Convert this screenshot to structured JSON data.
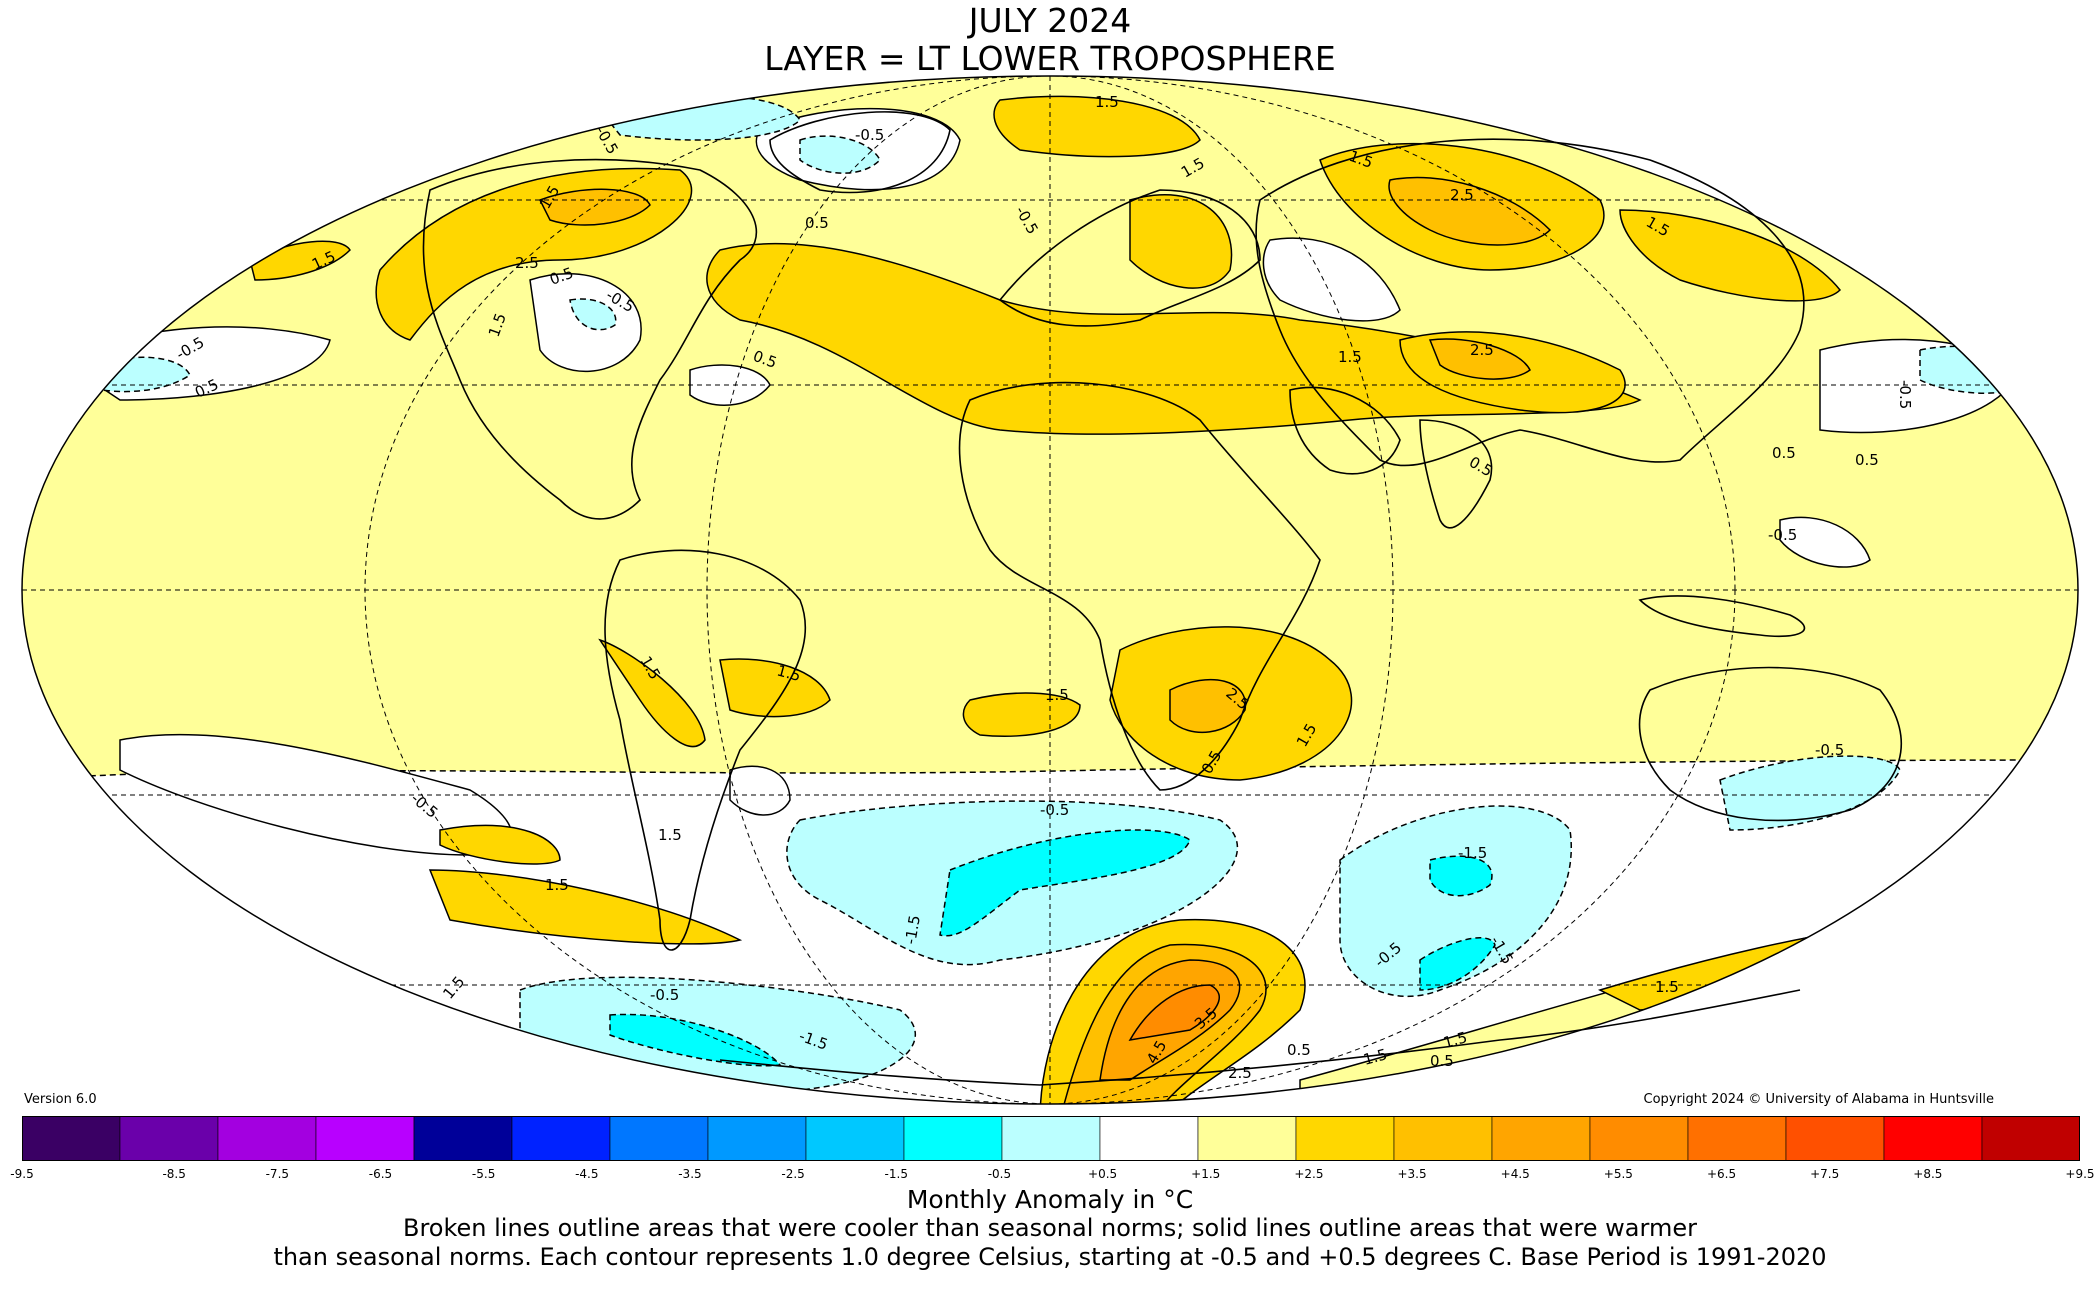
{
  "header": {
    "title_line1": "JULY 2024",
    "title_line2": "LAYER = LT LOWER TROPOSPHERE"
  },
  "footer": {
    "version": "Version 6.0",
    "copyright": "Copyright 2024 © University of Alabama in Huntsville",
    "axis_title": "Monthly Anomaly in °C",
    "note_line1": "Broken lines outline areas that were cooler than seasonal norms; solid lines outline areas that were warmer",
    "note_line2": "than seasonal norms. Each contour represents 1.0 degree Celsius, starting at -0.5 and +0.5 degrees C. Base Period is 1991-2020"
  },
  "colorbar": {
    "ticks": [
      "-9.5",
      "-8.5",
      "-7.5",
      "-6.5",
      "-5.5",
      "-4.5",
      "-3.5",
      "-2.5",
      "-1.5",
      "-0.5",
      "+0.5",
      "+1.5",
      "+2.5",
      "+3.5",
      "+4.5",
      "+5.5",
      "+6.5",
      "+7.5",
      "+8.5",
      "+9.5"
    ],
    "colors": [
      "#3a0064",
      "#6a00aa",
      "#a300e0",
      "#b800ff",
      "#000099",
      "#0022ff",
      "#0077ff",
      "#0099ff",
      "#00c8ff",
      "#00ffff",
      "#bbffff",
      "#ffffff",
      "#ffff99",
      "#ffd700",
      "#ffc000",
      "#ffa500",
      "#ff8c00",
      "#ff7000",
      "#ff5000",
      "#ff0000",
      "#c00000"
    ]
  },
  "map_legend_colors": {
    "neutral": "#ffffff",
    "cool_1": "#bbffff",
    "cool_2": "#00ffff",
    "warm_1": "#ffff99",
    "warm_2": "#ffd700",
    "warm_3": "#ffc000",
    "warm_4": "#ffa500",
    "warm_5": "#ff8c00"
  },
  "contour_labels": [
    "1.5",
    "1.5",
    "2.5",
    "0.5",
    "-0.5",
    "1.5",
    "0.5",
    "-0.5",
    "-0.5",
    "0.5",
    "-0.5",
    "0.5",
    "1.5",
    "1.5",
    "1.5",
    "2.5",
    "1.5",
    "1.5",
    "-0.5",
    "2.5",
    "0.5",
    "0.5",
    "0.5",
    "-0.5",
    "-0.5",
    "1.5",
    "1.5",
    "1.5",
    "2.5",
    "1.5",
    "0.5",
    "-0.5",
    "1.5",
    "1.5",
    "-0.5",
    "-1.5",
    "-1.5",
    "-1.5",
    "-0.5",
    "-0.5",
    "-1.5",
    "1.5",
    "1.5",
    "3.5",
    "4.5",
    "2.5",
    "0.5",
    "1.5",
    "0.5",
    "-0.5",
    "1.5"
  ]
}
